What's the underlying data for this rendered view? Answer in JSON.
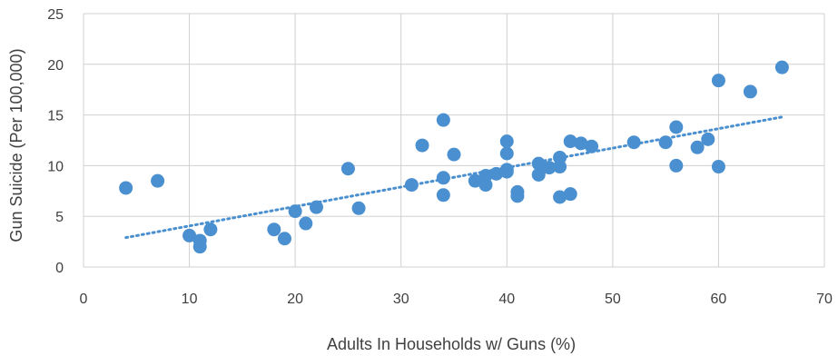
{
  "chart_data": {
    "type": "scatter",
    "xlabel": "Adults In Households w/ Guns (%)",
    "ylabel": "Gun Suicide (Per 100,000)",
    "xlim": [
      0,
      70
    ],
    "ylim": [
      0,
      25
    ],
    "xticks": [
      0,
      10,
      20,
      30,
      40,
      50,
      60,
      70
    ],
    "yticks": [
      0,
      5,
      10,
      15,
      20,
      25
    ],
    "grid": "vertical and horizontal",
    "legend": "none",
    "marker_color": "#4a8fcf",
    "trendline": {
      "style": "dotted linear",
      "x": [
        4,
        66
      ],
      "y": [
        2.9,
        14.8
      ]
    },
    "points": [
      {
        "x": 4,
        "y": 7.8
      },
      {
        "x": 7,
        "y": 8.5
      },
      {
        "x": 10,
        "y": 3.1
      },
      {
        "x": 11,
        "y": 2.6
      },
      {
        "x": 11,
        "y": 2.0
      },
      {
        "x": 12,
        "y": 3.7
      },
      {
        "x": 18,
        "y": 3.7
      },
      {
        "x": 19,
        "y": 2.8
      },
      {
        "x": 20,
        "y": 5.5
      },
      {
        "x": 21,
        "y": 4.3
      },
      {
        "x": 22,
        "y": 5.9
      },
      {
        "x": 25,
        "y": 9.7
      },
      {
        "x": 26,
        "y": 5.8
      },
      {
        "x": 31,
        "y": 8.1
      },
      {
        "x": 32,
        "y": 12.0
      },
      {
        "x": 34,
        "y": 14.5
      },
      {
        "x": 34,
        "y": 8.8
      },
      {
        "x": 34,
        "y": 7.1
      },
      {
        "x": 35,
        "y": 11.1
      },
      {
        "x": 37,
        "y": 8.5
      },
      {
        "x": 38,
        "y": 8.1
      },
      {
        "x": 38,
        "y": 9.0
      },
      {
        "x": 39,
        "y": 9.2
      },
      {
        "x": 40,
        "y": 9.6
      },
      {
        "x": 40,
        "y": 9.4
      },
      {
        "x": 40,
        "y": 11.2
      },
      {
        "x": 40,
        "y": 12.4
      },
      {
        "x": 41,
        "y": 7.4
      },
      {
        "x": 41,
        "y": 7.0
      },
      {
        "x": 43,
        "y": 10.2
      },
      {
        "x": 43,
        "y": 9.1
      },
      {
        "x": 44,
        "y": 9.8
      },
      {
        "x": 45,
        "y": 9.9
      },
      {
        "x": 45,
        "y": 10.8
      },
      {
        "x": 45,
        "y": 6.9
      },
      {
        "x": 46,
        "y": 7.2
      },
      {
        "x": 46,
        "y": 12.4
      },
      {
        "x": 47,
        "y": 12.2
      },
      {
        "x": 48,
        "y": 11.9
      },
      {
        "x": 52,
        "y": 12.3
      },
      {
        "x": 55,
        "y": 12.3
      },
      {
        "x": 56,
        "y": 13.8
      },
      {
        "x": 56,
        "y": 10.0
      },
      {
        "x": 58,
        "y": 11.8
      },
      {
        "x": 59,
        "y": 12.6
      },
      {
        "x": 60,
        "y": 18.4
      },
      {
        "x": 60,
        "y": 9.9
      },
      {
        "x": 63,
        "y": 17.3
      },
      {
        "x": 66,
        "y": 19.7
      }
    ]
  }
}
